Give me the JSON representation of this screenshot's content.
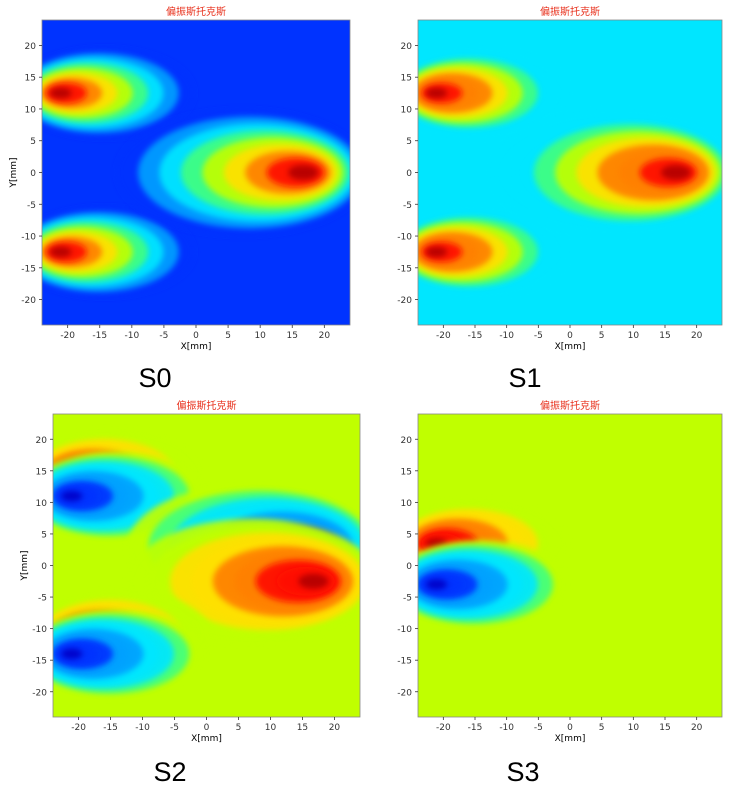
{
  "panel_title": "偏振斯托克斯",
  "colors": {
    "title_red": "#e8301c",
    "axis_tick": "#333333",
    "jet_scale": [
      "#0000c8",
      "#0033ff",
      "#00a0ff",
      "#00e6ff",
      "#40ff80",
      "#c0ff00",
      "#ffe000",
      "#ff8000",
      "#ff1000",
      "#b40000"
    ]
  },
  "chart_data": [
    {
      "type": "heatmap",
      "caption": "S0",
      "title": "偏振斯托克斯",
      "xlabel": "X[mm]",
      "ylabel": "Y[mm]",
      "xlim": [
        -24,
        24
      ],
      "ylim": [
        -24,
        24
      ],
      "xticks": [
        -20,
        -15,
        -10,
        -5,
        0,
        5,
        10,
        15,
        20
      ],
      "yticks": [
        20,
        15,
        10,
        5,
        0,
        -5,
        -10,
        -15,
        -20
      ],
      "colormap": "jet",
      "background_level": 0.06,
      "hotspots": [
        {
          "x": -22,
          "y": 12.5,
          "level": 1.0
        },
        {
          "x": -22,
          "y": -12.5,
          "level": 1.0
        },
        {
          "x": 18,
          "y": 0,
          "level": 1.0
        }
      ]
    },
    {
      "type": "heatmap",
      "caption": "S1",
      "title": "偏振斯托克斯",
      "xlabel": "X[mm]",
      "ylabel": "",
      "xlim": [
        -24,
        24
      ],
      "ylim": [
        -24,
        24
      ],
      "xticks": [
        -20,
        -15,
        -10,
        -5,
        0,
        5,
        10,
        15,
        20
      ],
      "yticks": [
        20,
        15,
        10,
        5,
        0,
        -5,
        -10,
        -15,
        -20
      ],
      "colormap": "jet",
      "background_level": 0.3,
      "hotspots": [
        {
          "x": -22,
          "y": 12.5,
          "level": 1.0
        },
        {
          "x": -22,
          "y": -12.5,
          "level": 1.0
        },
        {
          "x": 18,
          "y": 0,
          "level": 1.0
        }
      ]
    },
    {
      "type": "heatmap",
      "caption": "S2",
      "title": "偏振斯托克斯",
      "xlabel": "X[mm]",
      "ylabel": "Y[mm]",
      "xlim": [
        -24,
        24
      ],
      "ylim": [
        -24,
        24
      ],
      "xticks": [
        -20,
        -15,
        -10,
        -5,
        0,
        5,
        10,
        15,
        20
      ],
      "yticks": [
        20,
        15,
        10,
        5,
        0,
        -5,
        -10,
        -15,
        -20
      ],
      "colormap": "jet",
      "background_level": 0.5,
      "hotspots": [
        {
          "x": -22,
          "y": 14.5,
          "level": 1.0
        },
        {
          "x": -22,
          "y": 11,
          "level": 0.0
        },
        {
          "x": 18,
          "y": 3,
          "level": 0.0
        },
        {
          "x": 18,
          "y": -2.5,
          "level": 1.0
        },
        {
          "x": -21,
          "y": -11,
          "level": 1.0
        },
        {
          "x": -22,
          "y": -14,
          "level": 0.0
        }
      ]
    },
    {
      "type": "heatmap",
      "caption": "S3",
      "title": "偏振斯托克斯",
      "xlabel": "X[mm]",
      "ylabel": "",
      "xlim": [
        -24,
        24
      ],
      "ylim": [
        -24,
        24
      ],
      "xticks": [
        -20,
        -15,
        -10,
        -5,
        0,
        5,
        10,
        15,
        20
      ],
      "yticks": [
        20,
        15,
        10,
        5,
        0,
        -5,
        -10,
        -15,
        -20
      ],
      "colormap": "jet",
      "background_level": 0.5,
      "hotspots": [
        {
          "x": -22,
          "y": 3.5,
          "level": 1.0
        },
        {
          "x": -22,
          "y": -3,
          "level": 0.0
        }
      ]
    }
  ]
}
